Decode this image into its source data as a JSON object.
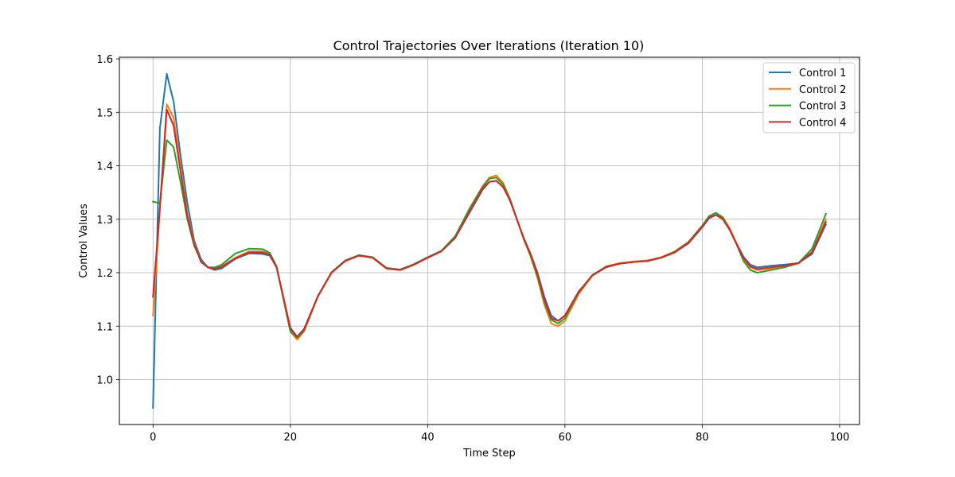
{
  "chart_data": {
    "type": "line",
    "title": "Control Trajectories Over Iterations (Iteration 10)",
    "xlabel": "Time Step",
    "ylabel": "Control Values",
    "xlim": [
      -4.9,
      102.9
    ],
    "ylim": [
      0.916,
      1.603
    ],
    "xticks": [
      0,
      20,
      40,
      60,
      80,
      100
    ],
    "yticks": [
      1.0,
      1.1,
      1.2,
      1.3,
      1.4,
      1.5,
      1.6
    ],
    "xtick_labels": [
      "0",
      "20",
      "40",
      "60",
      "80",
      "100"
    ],
    "ytick_labels": [
      "1.0",
      "1.1",
      "1.2",
      "1.3",
      "1.4",
      "1.5",
      "1.6"
    ],
    "grid": true,
    "legend_position": "top-right",
    "anchor_steps": [
      0,
      1,
      2,
      3,
      4,
      5,
      6,
      7,
      8,
      9,
      10,
      12,
      14,
      16,
      17,
      18,
      20,
      21,
      22,
      24,
      26,
      28,
      30,
      32,
      34,
      36,
      38,
      40,
      42,
      44,
      46,
      48,
      49,
      50,
      51,
      52,
      54,
      55,
      56,
      57,
      58,
      59,
      60,
      62,
      64,
      66,
      68,
      70,
      72,
      74,
      76,
      78,
      80,
      81,
      82,
      83,
      84,
      85,
      86,
      87,
      88,
      90,
      92,
      94,
      96,
      98
    ],
    "series": [
      {
        "name": "Control 1",
        "color": "#1f77b4",
        "anchors": [
          0.947,
          1.47,
          1.572,
          1.52,
          1.42,
          1.33,
          1.26,
          1.225,
          1.21,
          1.205,
          1.208,
          1.226,
          1.236,
          1.235,
          1.232,
          1.21,
          1.095,
          1.08,
          1.095,
          1.155,
          1.2,
          1.222,
          1.232,
          1.228,
          1.208,
          1.205,
          1.215,
          1.228,
          1.24,
          1.265,
          1.31,
          1.355,
          1.37,
          1.372,
          1.36,
          1.335,
          1.265,
          1.235,
          1.2,
          1.155,
          1.12,
          1.11,
          1.12,
          1.165,
          1.195,
          1.21,
          1.217,
          1.22,
          1.222,
          1.228,
          1.238,
          1.255,
          1.285,
          1.302,
          1.308,
          1.3,
          1.28,
          1.255,
          1.23,
          1.215,
          1.21,
          1.213,
          1.215,
          1.218,
          1.235,
          1.29
        ]
      },
      {
        "name": "Control 2",
        "color": "#ff7f0e",
        "anchors": [
          1.12,
          1.32,
          1.515,
          1.49,
          1.4,
          1.31,
          1.255,
          1.22,
          1.21,
          1.208,
          1.212,
          1.228,
          1.24,
          1.24,
          1.235,
          1.21,
          1.09,
          1.075,
          1.09,
          1.155,
          1.2,
          1.222,
          1.232,
          1.228,
          1.208,
          1.205,
          1.215,
          1.228,
          1.24,
          1.268,
          1.318,
          1.362,
          1.378,
          1.382,
          1.368,
          1.338,
          1.262,
          1.23,
          1.19,
          1.14,
          1.105,
          1.1,
          1.11,
          1.16,
          1.195,
          1.212,
          1.218,
          1.221,
          1.223,
          1.229,
          1.24,
          1.258,
          1.288,
          1.305,
          1.312,
          1.304,
          1.283,
          1.255,
          1.226,
          1.21,
          1.205,
          1.208,
          1.212,
          1.217,
          1.24,
          1.3
        ]
      },
      {
        "name": "Control 3",
        "color": "#2ca02c",
        "anchors": [
          1.333,
          1.33,
          1.448,
          1.435,
          1.37,
          1.3,
          1.25,
          1.222,
          1.21,
          1.21,
          1.215,
          1.236,
          1.245,
          1.244,
          1.237,
          1.212,
          1.09,
          1.078,
          1.092,
          1.156,
          1.201,
          1.223,
          1.233,
          1.229,
          1.209,
          1.206,
          1.216,
          1.229,
          1.241,
          1.268,
          1.317,
          1.36,
          1.376,
          1.378,
          1.365,
          1.337,
          1.264,
          1.232,
          1.193,
          1.145,
          1.112,
          1.105,
          1.115,
          1.163,
          1.196,
          1.211,
          1.217,
          1.22,
          1.222,
          1.228,
          1.239,
          1.257,
          1.288,
          1.306,
          1.312,
          1.303,
          1.281,
          1.253,
          1.222,
          1.205,
          1.2,
          1.205,
          1.21,
          1.218,
          1.245,
          1.31
        ]
      },
      {
        "name": "Control 4",
        "color": "#d62728",
        "anchors": [
          1.155,
          1.32,
          1.505,
          1.475,
          1.39,
          1.305,
          1.253,
          1.22,
          1.21,
          1.207,
          1.211,
          1.227,
          1.238,
          1.238,
          1.234,
          1.21,
          1.097,
          1.08,
          1.094,
          1.156,
          1.2,
          1.222,
          1.232,
          1.228,
          1.208,
          1.205,
          1.215,
          1.228,
          1.24,
          1.265,
          1.312,
          1.357,
          1.37,
          1.372,
          1.36,
          1.335,
          1.264,
          1.235,
          1.198,
          1.15,
          1.115,
          1.11,
          1.12,
          1.164,
          1.195,
          1.211,
          1.217,
          1.22,
          1.222,
          1.228,
          1.238,
          1.256,
          1.286,
          1.303,
          1.308,
          1.3,
          1.28,
          1.253,
          1.228,
          1.212,
          1.207,
          1.21,
          1.213,
          1.218,
          1.238,
          1.295
        ]
      }
    ]
  }
}
